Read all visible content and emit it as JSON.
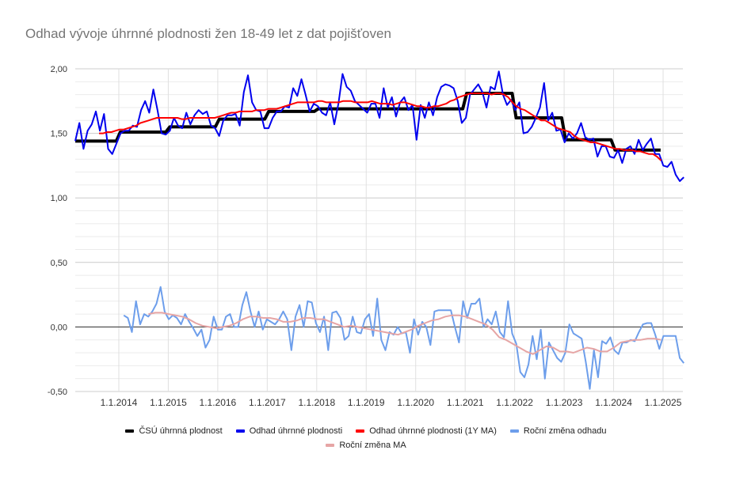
{
  "chart_data": {
    "type": "line",
    "title": "Odhad vývoje úhrnné plodnosti žen 18-49 let z dat pojišťoven",
    "xlabel": "",
    "ylabel": "",
    "xlim": [
      2013.12,
      2025.4
    ],
    "ylim": [
      -0.5,
      2.0
    ],
    "grid": true,
    "legend_position": "bottom",
    "y_ticks": [
      2.0,
      1.5,
      1.0,
      0.5,
      0.0,
      -0.5
    ],
    "y_tick_labels": [
      "2,00",
      "1,50",
      "1,00",
      "0,50",
      "0,00",
      "-0,50"
    ],
    "x_ticks": [
      2014,
      2015,
      2016,
      2017,
      2018,
      2019,
      2020,
      2021,
      2022,
      2023,
      2024,
      2025
    ],
    "x_tick_labels": [
      "1.1.2014",
      "1.1.2015",
      "1.1.2016",
      "1.1.2017",
      "1.1.2018",
      "1.1.2019",
      "1.1.2020",
      "1.1.2021",
      "1.1.2022",
      "1.1.2023",
      "1.1.2024",
      "1.1.2025"
    ],
    "series": [
      {
        "name": "ČSÚ úhrnná plodnost",
        "color": "#000000",
        "kind": "annual-step",
        "years": [
          2013,
          2014,
          2015,
          2016,
          2017,
          2018,
          2019,
          2020,
          2021,
          2022,
          2023,
          2024
        ],
        "values": [
          1.44,
          1.51,
          1.55,
          1.61,
          1.67,
          1.69,
          1.69,
          1.69,
          1.81,
          1.62,
          1.45,
          1.37
        ]
      },
      {
        "name": "Odhad úhrnné plodnosti",
        "color": "#0000ee",
        "x_start": 2013.12,
        "x_end": 2025.42,
        "values": [
          1.44,
          1.58,
          1.38,
          1.52,
          1.57,
          1.67,
          1.52,
          1.65,
          1.38,
          1.34,
          1.42,
          1.5,
          1.52,
          1.52,
          1.56,
          1.55,
          1.68,
          1.75,
          1.66,
          1.84,
          1.68,
          1.5,
          1.49,
          1.52,
          1.62,
          1.56,
          1.54,
          1.66,
          1.57,
          1.64,
          1.68,
          1.65,
          1.67,
          1.56,
          1.54,
          1.48,
          1.6,
          1.64,
          1.64,
          1.65,
          1.56,
          1.82,
          1.95,
          1.74,
          1.68,
          1.67,
          1.54,
          1.54,
          1.62,
          1.67,
          1.67,
          1.71,
          1.7,
          1.85,
          1.79,
          1.92,
          1.8,
          1.67,
          1.73,
          1.71,
          1.66,
          1.64,
          1.74,
          1.57,
          1.73,
          1.96,
          1.86,
          1.83,
          1.75,
          1.72,
          1.69,
          1.66,
          1.73,
          1.73,
          1.62,
          1.85,
          1.7,
          1.78,
          1.63,
          1.74,
          1.78,
          1.68,
          1.72,
          1.45,
          1.72,
          1.62,
          1.74,
          1.64,
          1.78,
          1.86,
          1.88,
          1.87,
          1.85,
          1.75,
          1.58,
          1.62,
          1.8,
          1.84,
          1.88,
          1.82,
          1.7,
          1.86,
          1.84,
          1.98,
          1.8,
          1.72,
          1.76,
          1.68,
          1.74,
          1.5,
          1.51,
          1.55,
          1.62,
          1.7,
          1.89,
          1.6,
          1.66,
          1.52,
          1.53,
          1.43,
          1.5,
          1.46,
          1.5,
          1.58,
          1.47,
          1.45,
          1.46,
          1.32,
          1.4,
          1.4,
          1.32,
          1.31,
          1.37,
          1.27,
          1.38,
          1.4,
          1.34,
          1.45,
          1.37,
          1.42,
          1.46,
          1.34,
          1.34,
          1.25,
          1.24,
          1.28,
          1.18,
          1.13,
          1.16
        ]
      },
      {
        "name": "Odhad úhrnné plodnosti (1Y MA)",
        "color": "#ff0000",
        "x_start": 2013.6,
        "x_end": 2024.96,
        "values": [
          1.5,
          1.5,
          1.51,
          1.51,
          1.52,
          1.53,
          1.53,
          1.54,
          1.55,
          1.56,
          1.58,
          1.59,
          1.6,
          1.61,
          1.62,
          1.62,
          1.62,
          1.62,
          1.62,
          1.62,
          1.61,
          1.61,
          1.62,
          1.62,
          1.62,
          1.62,
          1.62,
          1.62,
          1.62,
          1.63,
          1.64,
          1.65,
          1.66,
          1.66,
          1.67,
          1.67,
          1.67,
          1.67,
          1.68,
          1.68,
          1.68,
          1.69,
          1.69,
          1.69,
          1.7,
          1.71,
          1.72,
          1.73,
          1.74,
          1.74,
          1.74,
          1.74,
          1.74,
          1.75,
          1.75,
          1.74,
          1.74,
          1.74,
          1.74,
          1.75,
          1.75,
          1.75,
          1.74,
          1.74,
          1.74,
          1.74,
          1.75,
          1.74,
          1.73,
          1.73,
          1.73,
          1.72,
          1.73,
          1.74,
          1.74,
          1.73,
          1.72,
          1.71,
          1.71,
          1.7,
          1.7,
          1.71,
          1.71,
          1.72,
          1.73,
          1.75,
          1.76,
          1.78,
          1.79,
          1.8,
          1.81,
          1.81,
          1.81,
          1.81,
          1.81,
          1.8,
          1.81,
          1.81,
          1.8,
          1.78,
          1.74,
          1.71,
          1.69,
          1.68,
          1.66,
          1.64,
          1.62,
          1.6,
          1.6,
          1.58,
          1.56,
          1.54,
          1.53,
          1.52,
          1.51,
          1.48,
          1.46,
          1.45,
          1.44,
          1.43,
          1.43,
          1.42,
          1.41,
          1.4,
          1.39,
          1.38,
          1.38,
          1.37,
          1.37,
          1.37,
          1.36,
          1.36,
          1.35,
          1.34,
          1.34,
          1.32,
          1.29
        ]
      },
      {
        "name": "Roční změna odhadu",
        "color": "#6d9eeb",
        "x_start": 2014.1,
        "x_end": 2025.42,
        "values": [
          0.09,
          0.07,
          -0.04,
          0.2,
          0.02,
          0.1,
          0.08,
          0.12,
          0.18,
          0.31,
          0.12,
          0.06,
          0.09,
          0.07,
          0.02,
          0.1,
          0.04,
          -0.01,
          -0.07,
          -0.02,
          -0.16,
          -0.1,
          0.08,
          -0.02,
          -0.02,
          0.08,
          0.1,
          0.0,
          0.0,
          0.17,
          0.27,
          0.12,
          0.0,
          0.12,
          -0.02,
          0.06,
          0.04,
          0.02,
          0.06,
          0.12,
          0.06,
          -0.18,
          0.08,
          0.17,
          0.0,
          0.2,
          0.19,
          0.03,
          -0.04,
          0.08,
          -0.18,
          0.11,
          0.12,
          0.07,
          -0.1,
          -0.07,
          0.08,
          -0.04,
          -0.05,
          0.06,
          0.1,
          -0.07,
          0.22,
          -0.1,
          -0.18,
          -0.04,
          -0.06,
          0.0,
          -0.05,
          -0.04,
          -0.2,
          0.06,
          -0.06,
          0.04,
          0.0,
          -0.14,
          0.12,
          0.13,
          0.13,
          0.13,
          0.13,
          0.0,
          -0.12,
          0.2,
          0.07,
          0.18,
          0.18,
          0.22,
          0.0,
          0.06,
          0.02,
          0.12,
          -0.04,
          -0.08,
          0.2,
          -0.05,
          -0.13,
          -0.35,
          -0.39,
          -0.29,
          -0.07,
          -0.25,
          -0.02,
          -0.4,
          -0.12,
          -0.18,
          -0.24,
          -0.27,
          -0.2,
          0.02,
          -0.05,
          -0.07,
          -0.09,
          -0.27,
          -0.48,
          -0.18,
          -0.39,
          -0.11,
          -0.13,
          -0.08,
          -0.18,
          -0.21,
          -0.12,
          -0.12,
          -0.1,
          -0.11,
          -0.04,
          0.02,
          0.03,
          0.03,
          -0.06,
          -0.17,
          -0.07,
          -0.07,
          -0.07,
          -0.07,
          -0.24,
          -0.28
        ]
      },
      {
        "name": "Roční změna MA",
        "color": "#e6a5a5",
        "x_start": 2014.6,
        "x_end": 2024.96,
        "values": [
          0.1,
          0.11,
          0.11,
          0.1,
          0.09,
          0.08,
          0.06,
          0.03,
          0.01,
          0.0,
          -0.01,
          0.0,
          0.01,
          0.03,
          0.06,
          0.08,
          0.08,
          0.07,
          0.07,
          0.06,
          0.04,
          0.04,
          0.05,
          0.07,
          0.07,
          0.06,
          0.06,
          0.04,
          0.02,
          0.0,
          0.01,
          0.0,
          -0.01,
          -0.02,
          -0.03,
          -0.04,
          -0.05,
          -0.06,
          -0.04,
          -0.02,
          0.01,
          0.03,
          0.05,
          0.06,
          0.08,
          0.09,
          0.09,
          0.08,
          0.06,
          0.04,
          0.02,
          -0.02,
          -0.08,
          -0.1,
          -0.13,
          -0.16,
          -0.19,
          -0.21,
          -0.18,
          -0.15,
          -0.16,
          -0.19,
          -0.19,
          -0.2,
          -0.18,
          -0.16,
          -0.17,
          -0.19,
          -0.19,
          -0.16,
          -0.12,
          -0.11,
          -0.1,
          -0.1,
          -0.09,
          -0.09,
          -0.1
        ]
      }
    ]
  }
}
